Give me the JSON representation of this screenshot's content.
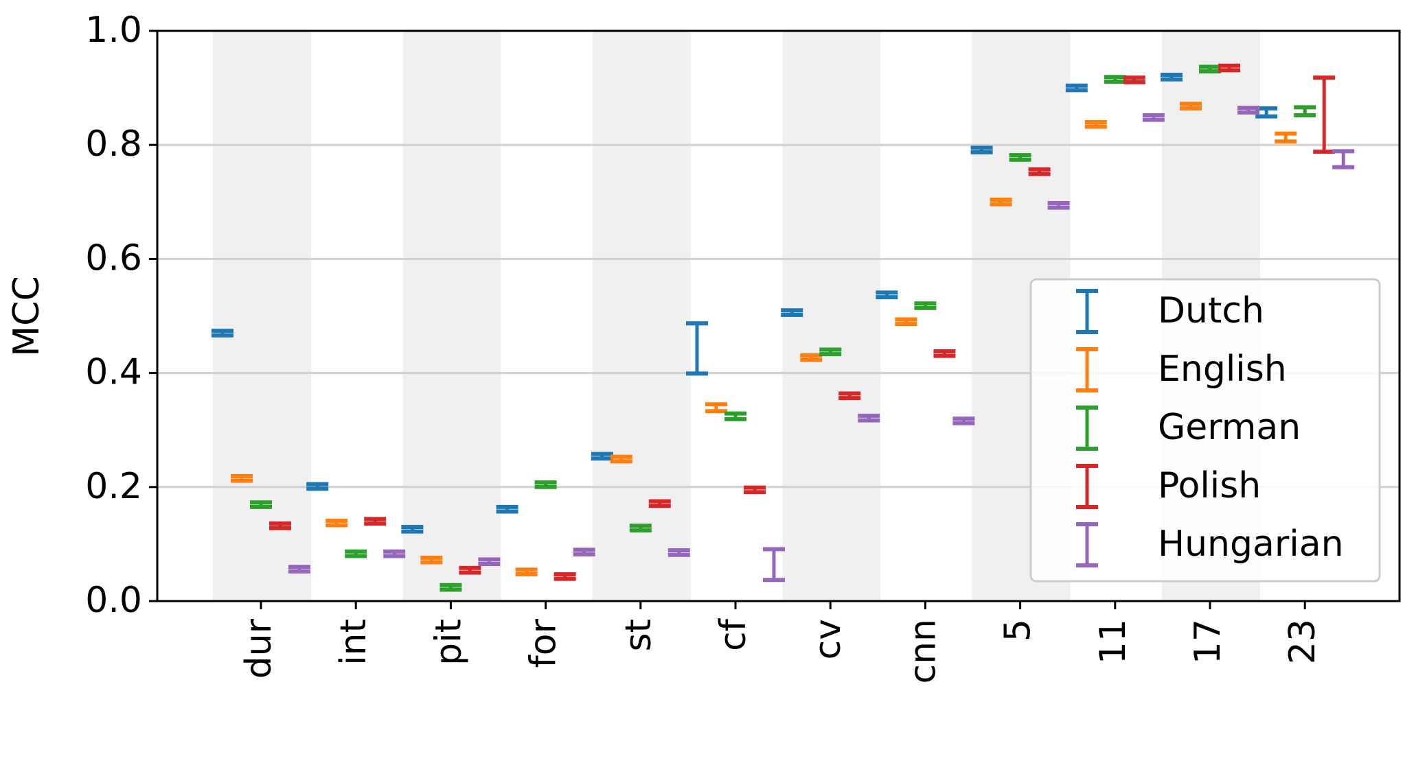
{
  "chart_data": {
    "type": "errorbar",
    "y_label": "MCC",
    "categories": [
      "dur",
      "int",
      "pit",
      "for",
      "st",
      "cf",
      "cv",
      "cnn",
      "5",
      "11",
      "17",
      "23"
    ],
    "ylim": [
      0,
      1
    ],
    "yticks": [
      {
        "value": 0,
        "label": "0.0"
      },
      {
        "value": 0.2,
        "label": "0.2"
      },
      {
        "value": 0.4,
        "label": "0.4"
      },
      {
        "value": 0.6,
        "label": "0.6"
      },
      {
        "value": 0.8,
        "label": "0.8"
      },
      {
        "value": 1,
        "label": "1.0"
      }
    ],
    "grid": true,
    "legend": "center right",
    "shaded_bands": true,
    "series": [
      {
        "name": "Dutch",
        "color": "#1f77b4",
        "values": [
          0.47,
          0.201,
          0.126,
          0.161,
          0.254,
          0.443,
          0.506,
          0.537,
          0.791,
          0.9,
          0.919,
          0.857
        ],
        "errors": [
          0.004,
          0.004,
          0.004,
          0.004,
          0.004,
          0.044,
          0.004,
          0.004,
          0.004,
          0.004,
          0.004,
          0.007
        ]
      },
      {
        "name": "English",
        "color": "#ff7f0e",
        "values": [
          0.215,
          0.137,
          0.072,
          0.051,
          0.249,
          0.339,
          0.427,
          0.49,
          0.7,
          0.836,
          0.868,
          0.813
        ],
        "errors": [
          0.004,
          0.004,
          0.004,
          0.004,
          0.004,
          0.006,
          0.004,
          0.004,
          0.004,
          0.004,
          0.004,
          0.007
        ]
      },
      {
        "name": "German",
        "color": "#2ca02c",
        "values": [
          0.169,
          0.083,
          0.024,
          0.204,
          0.128,
          0.324,
          0.437,
          0.518,
          0.778,
          0.915,
          0.933,
          0.859
        ],
        "errors": [
          0.004,
          0.004,
          0.004,
          0.004,
          0.004,
          0.005,
          0.004,
          0.004,
          0.004,
          0.004,
          0.004,
          0.007
        ]
      },
      {
        "name": "Polish",
        "color": "#d62728",
        "values": [
          0.132,
          0.14,
          0.054,
          0.043,
          0.171,
          0.195,
          0.36,
          0.434,
          0.753,
          0.914,
          0.935,
          0.853
        ],
        "errors": [
          0.004,
          0.004,
          0.004,
          0.004,
          0.004,
          0.004,
          0.004,
          0.004,
          0.004,
          0.004,
          0.004,
          0.065
        ]
      },
      {
        "name": "Hungarian",
        "color": "#9467bd",
        "values": [
          0.056,
          0.083,
          0.069,
          0.086,
          0.085,
          0.064,
          0.321,
          0.316,
          0.694,
          0.848,
          0.861,
          0.775
        ],
        "errors": [
          0.004,
          0.004,
          0.004,
          0.004,
          0.004,
          0.027,
          0.004,
          0.004,
          0.004,
          0.004,
          0.004,
          0.014
        ]
      }
    ]
  }
}
